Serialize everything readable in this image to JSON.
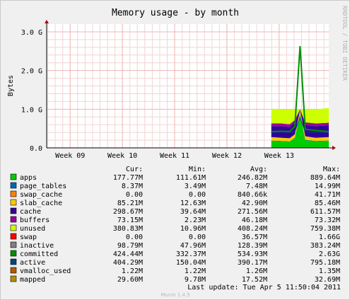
{
  "chart_data": {
    "type": "area",
    "title": "Memory usage - by month",
    "ylabel": "Bytes",
    "side_label": "RRDTOOL / TOBI OETIKER",
    "ylim": [
      0,
      3.2
    ],
    "y_unit": "G",
    "y_ticks": [
      "0.0",
      "1.0 G",
      "2.0 G",
      "3.0 G"
    ],
    "y_tick_values": [
      0,
      1,
      2,
      3
    ],
    "x_ticks": [
      "Week 09",
      "Week 10",
      "Week 11",
      "Week 12",
      "Week 13"
    ],
    "x_range_weeks": [
      8.55,
      13.95
    ],
    "data_start_week": 12.85,
    "profile": [
      {
        "week": 12.85,
        "apps": 0.18,
        "page_tables": 0.01,
        "swap_cache": 0.0,
        "slab_cache": 0.09,
        "cache": 0.28,
        "buffers": 0.07,
        "unused": 0.38,
        "committed": 0.42,
        "active": 0.4
      },
      {
        "week": 13.05,
        "apps": 0.17,
        "page_tables": 0.01,
        "swap_cache": 0.0,
        "slab_cache": 0.08,
        "cache": 0.3,
        "buffers": 0.07,
        "unused": 0.37,
        "committed": 0.43,
        "active": 0.41
      },
      {
        "week": 13.2,
        "apps": 0.16,
        "page_tables": 0.01,
        "swap_cache": 0.0,
        "slab_cache": 0.08,
        "cache": 0.29,
        "buffers": 0.07,
        "unused": 0.39,
        "committed": 0.42,
        "active": 0.4
      },
      {
        "week": 13.3,
        "apps": 0.25,
        "page_tables": 0.01,
        "swap_cache": 0.0,
        "slab_cache": 0.09,
        "cache": 0.3,
        "buffers": 0.07,
        "unused": 0.28,
        "committed": 0.55,
        "active": 0.42
      },
      {
        "week": 13.4,
        "apps": 0.88,
        "page_tables": 0.01,
        "swap_cache": 0.0,
        "slab_cache": 0.08,
        "cache": 0.02,
        "buffers": 0.01,
        "unused": 0.0,
        "committed": 2.63,
        "active": 0.78
      },
      {
        "week": 13.5,
        "apps": 0.2,
        "page_tables": 0.01,
        "swap_cache": 0.0,
        "slab_cache": 0.09,
        "cache": 0.29,
        "buffers": 0.07,
        "unused": 0.34,
        "committed": 0.48,
        "active": 0.41
      },
      {
        "week": 13.7,
        "apps": 0.17,
        "page_tables": 0.01,
        "swap_cache": 0.0,
        "slab_cache": 0.08,
        "cache": 0.3,
        "buffers": 0.07,
        "unused": 0.37,
        "committed": 0.45,
        "active": 0.4
      },
      {
        "week": 13.95,
        "apps": 0.18,
        "page_tables": 0.01,
        "swap_cache": 0.0,
        "slab_cache": 0.09,
        "cache": 0.3,
        "buffers": 0.07,
        "unused": 0.38,
        "committed": 0.42,
        "active": 0.4
      }
    ],
    "legend_headers": {
      "cur": "Cur:",
      "min": "Min:",
      "avg": "Avg:",
      "max": "Max:"
    },
    "series": [
      {
        "name": "apps",
        "color": "#00cc00",
        "cur": "177.77M",
        "min": "111.61M",
        "avg": "246.82M",
        "max": "889.64M"
      },
      {
        "name": "page_tables",
        "color": "#0066b3",
        "cur": "8.37M",
        "min": "3.49M",
        "avg": "7.48M",
        "max": "14.99M"
      },
      {
        "name": "swap_cache",
        "color": "#ff8000",
        "cur": "0.00",
        "min": "0.00",
        "avg": "840.66k",
        "max": "41.71M"
      },
      {
        "name": "slab_cache",
        "color": "#ffcc00",
        "cur": "85.21M",
        "min": "12.63M",
        "avg": "42.90M",
        "max": "85.46M"
      },
      {
        "name": "cache",
        "color": "#330099",
        "cur": "298.67M",
        "min": "39.64M",
        "avg": "271.56M",
        "max": "611.57M"
      },
      {
        "name": "buffers",
        "color": "#990099",
        "cur": "73.15M",
        "min": "2.23M",
        "avg": "46.18M",
        "max": "73.32M"
      },
      {
        "name": "unused",
        "color": "#ccff00",
        "cur": "380.83M",
        "min": "10.96M",
        "avg": "408.24M",
        "max": "759.38M"
      },
      {
        "name": "swap",
        "color": "#ff0000",
        "cur": "0.00",
        "min": "0.00",
        "avg": "36.57M",
        "max": "1.66G"
      },
      {
        "name": "inactive",
        "color": "#808080",
        "cur": "98.79M",
        "min": "47.96M",
        "avg": "128.39M",
        "max": "383.24M"
      },
      {
        "name": "committed",
        "color": "#008f00",
        "cur": "424.44M",
        "min": "332.37M",
        "avg": "534.93M",
        "max": "2.63G"
      },
      {
        "name": "active",
        "color": "#00487d",
        "cur": "404.29M",
        "min": "150.04M",
        "avg": "390.17M",
        "max": "795.18M"
      },
      {
        "name": "vmalloc_used",
        "color": "#b35a00",
        "cur": "1.22M",
        "min": "1.22M",
        "avg": "1.26M",
        "max": "1.35M"
      },
      {
        "name": "mapped",
        "color": "#b38f00",
        "cur": "29.60M",
        "min": "9.78M",
        "avg": "17.52M",
        "max": "32.69M"
      }
    ],
    "last_update": "Last update: Tue Apr  5 11:50:04 2011",
    "footer_credit": "Munin 1.4.5"
  }
}
